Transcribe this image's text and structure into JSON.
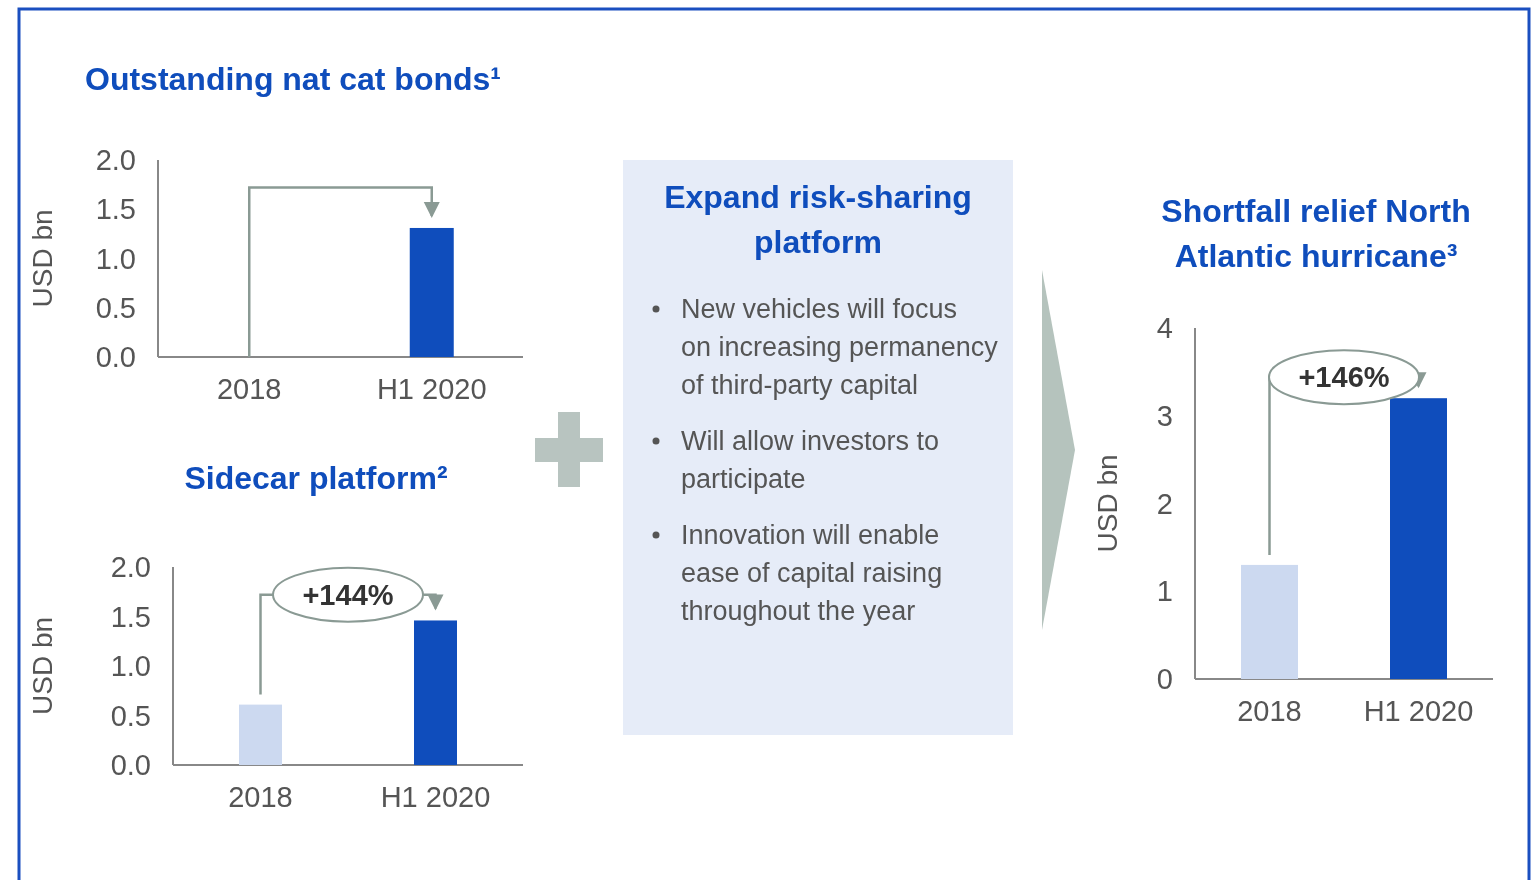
{
  "chart_data": [
    {
      "type": "bar",
      "title": "Outstanding nat cat bonds¹",
      "ylabel": "USD bn",
      "categories": [
        "2018",
        "H1 2020"
      ],
      "values": [
        0,
        1.31
      ],
      "colors": [
        "#ccd9f0",
        "#0f4dbc"
      ],
      "ylim": [
        0,
        2
      ],
      "yticks": [
        {
          "value": 0,
          "label": "0.0"
        },
        {
          "value": 0.5,
          "label": "0.5"
        },
        {
          "value": 1,
          "label": "1.0"
        },
        {
          "value": 1.5,
          "label": "1.5"
        },
        {
          "value": 2,
          "label": "2.0"
        }
      ]
    },
    {
      "type": "bar",
      "title": "Sidecar platform²",
      "ylabel": "USD bn",
      "categories": [
        "2018",
        "H1 2020"
      ],
      "values": [
        0.61,
        1.46
      ],
      "colors": [
        "#ccd9f0",
        "#0f4dbc"
      ],
      "ylim": [
        0,
        2
      ],
      "yticks": [
        {
          "value": 0,
          "label": "0.0"
        },
        {
          "value": 0.5,
          "label": "0.5"
        },
        {
          "value": 1,
          "label": "1.0"
        },
        {
          "value": 1.5,
          "label": "1.5"
        },
        {
          "value": 2,
          "label": "2.0"
        }
      ],
      "annotations": [
        "+144%"
      ]
    },
    {
      "type": "other",
      "title": "Expand risk-sharing platform",
      "annotations": [
        "New vehicles will focus on increasing permanency of third-party capital",
        "Will allow investors to participate",
        "Innovation will enable ease of capital raising throughout the year"
      ]
    },
    {
      "type": "bar",
      "title": "Shortfall relief North Atlantic hurricane³",
      "ylabel": "USD bn",
      "categories": [
        "2018",
        "H1 2020"
      ],
      "values": [
        1.3,
        3.2
      ],
      "colors": [
        "#ccd9f0",
        "#0f4dbc"
      ],
      "ylim": [
        0,
        4
      ],
      "yticks": [
        0,
        1,
        2,
        3,
        4
      ],
      "annotations": [
        "+146%"
      ]
    }
  ]
}
